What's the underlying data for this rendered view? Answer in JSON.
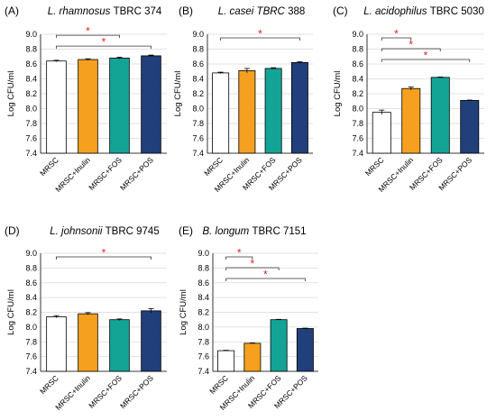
{
  "chart_data": [
    {
      "type": "bar",
      "panel": "(A)",
      "title_species": "L. rhamnosus",
      "title_strain": "TBRC 374",
      "ylabel": "Log CFU/ml",
      "ylim": [
        7.4,
        9.0
      ],
      "yticks": [
        "7.4",
        "7.6",
        "7.8",
        "8.0",
        "8.2",
        "8.4",
        "8.6",
        "8.8",
        "9.0"
      ],
      "categories": [
        "MRSC",
        "MRSC+Inulin",
        "MRSC+FOS",
        "MRSC+POS"
      ],
      "values": [
        8.64,
        8.66,
        8.68,
        8.71
      ],
      "errors": [
        0.01,
        0.01,
        0.01,
        0.01
      ],
      "significance": [
        {
          "from": "MRSC",
          "to": "MRSC+FOS",
          "label": "*"
        },
        {
          "from": "MRSC",
          "to": "MRSC+POS",
          "label": "*"
        }
      ]
    },
    {
      "type": "bar",
      "panel": "(B)",
      "title_species": "L. casei TBRC",
      "title_strain": "388",
      "ylabel": "Log CFU/ml",
      "ylim": [
        7.4,
        9.0
      ],
      "yticks": [
        "7.4",
        "7.6",
        "7.8",
        "8.0",
        "8.2",
        "8.4",
        "8.6",
        "8.8",
        "9.0"
      ],
      "categories": [
        "MRSC",
        "MRSC+Inulin",
        "MRSC+FOS",
        "MRSC+POS"
      ],
      "values": [
        8.48,
        8.51,
        8.54,
        8.62
      ],
      "errors": [
        0.01,
        0.03,
        0.01,
        0.01
      ],
      "significance": [
        {
          "from": "MRSC",
          "to": "MRSC+POS",
          "label": "*"
        }
      ]
    },
    {
      "type": "bar",
      "panel": "(C)",
      "title_species": "L. acidophilus",
      "title_strain": "TBRC 5030",
      "ylabel": "Log CFU/ml",
      "ylim": [
        7.4,
        9.0
      ],
      "yticks": [
        "7.4",
        "7.6",
        "7.8",
        "8.0",
        "8.2",
        "8.4",
        "8.6",
        "8.8",
        "9.0"
      ],
      "categories": [
        "MRSC",
        "MRSC+Inulin",
        "MRSC+FOS",
        "MRSC+POS"
      ],
      "values": [
        7.95,
        8.27,
        8.42,
        8.11
      ],
      "errors": [
        0.03,
        0.02,
        0.005,
        0.005
      ],
      "significance": [
        {
          "from": "MRSC",
          "to": "MRSC+Inulin",
          "label": "*"
        },
        {
          "from": "MRSC",
          "to": "MRSC+FOS",
          "label": "*"
        },
        {
          "from": "MRSC",
          "to": "MRSC+POS",
          "label": "*"
        }
      ]
    },
    {
      "type": "bar",
      "panel": "(D)",
      "title_species": "L. johnsonii",
      "title_strain": "TBRC 9745",
      "ylabel": "Log CFU/ml",
      "ylim": [
        7.4,
        9.0
      ],
      "yticks": [
        "7.4",
        "7.6",
        "7.8",
        "8.0",
        "8.2",
        "8.4",
        "8.6",
        "8.8",
        "9.0"
      ],
      "categories": [
        "MRSC",
        "MRSC+Inulin",
        "MRSC+FOS",
        "MRSC+POS"
      ],
      "values": [
        8.14,
        8.18,
        8.1,
        8.22
      ],
      "errors": [
        0.015,
        0.015,
        0.01,
        0.03
      ],
      "significance": [
        {
          "from": "MRSC",
          "to": "MRSC+POS",
          "label": "*"
        }
      ]
    },
    {
      "type": "bar",
      "panel": "(E)",
      "title_species": "B. longum",
      "title_strain": "TBRC 7151",
      "ylabel": "Log CFU/ml",
      "ylim": [
        7.4,
        9.0
      ],
      "yticks": [
        "7.4",
        "7.6",
        "7.8",
        "8.0",
        "8.2",
        "8.4",
        "8.6",
        "8.8",
        "9.0"
      ],
      "categories": [
        "MRSC",
        "MRSC+Inulin",
        "MRSC+FOS",
        "MRSC+POS"
      ],
      "values": [
        7.68,
        7.78,
        8.1,
        7.98
      ],
      "errors": [
        0.005,
        0.005,
        0.005,
        0.005
      ],
      "significance": [
        {
          "from": "MRSC",
          "to": "MRSC+Inulin",
          "label": "*"
        },
        {
          "from": "MRSC",
          "to": "MRSC+FOS",
          "label": "*"
        },
        {
          "from": "MRSC",
          "to": "MRSC+POS",
          "label": "*"
        }
      ]
    }
  ],
  "colors": {
    "bars": [
      "#ffffff",
      "#f5a01e",
      "#14a496",
      "#213f7a"
    ],
    "bar_stroke": "#000000",
    "significance": "#e02020",
    "axis": "#000000",
    "grid": "#d9d9d9"
  }
}
